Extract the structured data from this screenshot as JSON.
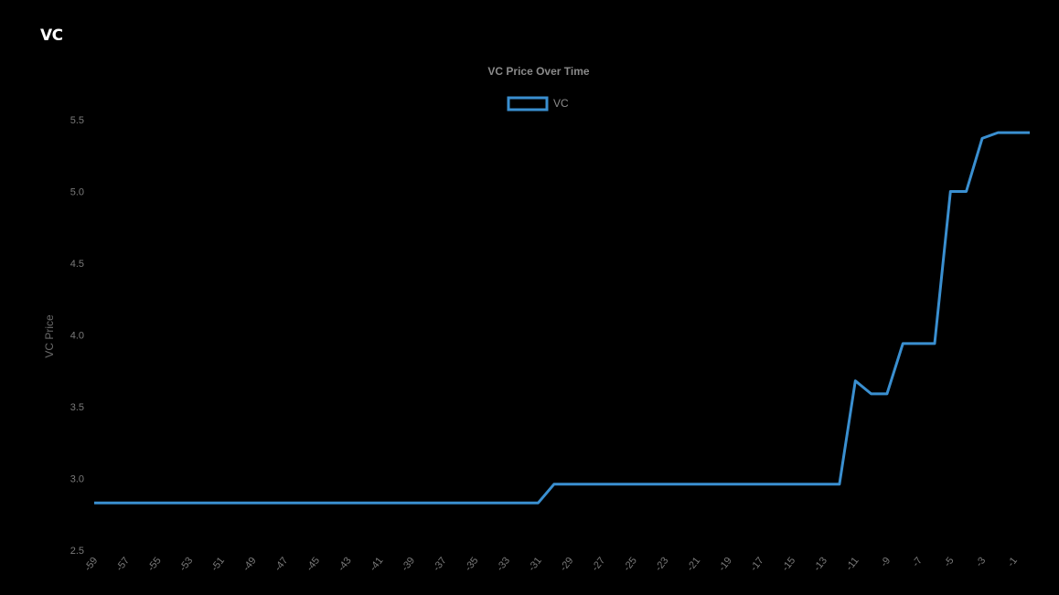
{
  "app": {
    "title": "VC"
  },
  "chart_data": {
    "type": "line",
    "title": "VC Price Over Time",
    "xlabel": "",
    "ylabel": "VC Price",
    "ylim": [
      2.5,
      5.5
    ],
    "yticks": [
      "2.5",
      "3.0",
      "3.5",
      "4.0",
      "4.5",
      "5.0",
      "5.5"
    ],
    "xlim": [
      -59,
      0
    ],
    "xticks": [
      "-59",
      "-57",
      "-55",
      "-53",
      "-51",
      "-49",
      "-47",
      "-45",
      "-43",
      "-41",
      "-39",
      "-37",
      "-35",
      "-33",
      "-31",
      "-29",
      "-27",
      "-25",
      "-23",
      "-21",
      "-19",
      "-17",
      "-15",
      "-13",
      "-11",
      "-9",
      "-7",
      "-5",
      "-3",
      "-1"
    ],
    "grid": false,
    "legend_position": "top",
    "series": [
      {
        "name": "VC",
        "color": "#3a8fd0",
        "x": [
          -59,
          -58,
          -57,
          -56,
          -55,
          -54,
          -53,
          -52,
          -51,
          -50,
          -49,
          -48,
          -47,
          -46,
          -45,
          -44,
          -43,
          -42,
          -41,
          -40,
          -39,
          -38,
          -37,
          -36,
          -35,
          -34,
          -33,
          -32,
          -31,
          -30,
          -29,
          -28,
          -27,
          -26,
          -25,
          -24,
          -23,
          -22,
          -21,
          -20,
          -19,
          -18,
          -17,
          -16,
          -15,
          -14,
          -13,
          -12,
          -11,
          -10,
          -9,
          -8,
          -7,
          -6,
          -5,
          -4,
          -3,
          -2,
          -1,
          0
        ],
        "values": [
          2.83,
          2.83,
          2.83,
          2.83,
          2.83,
          2.83,
          2.83,
          2.83,
          2.83,
          2.83,
          2.83,
          2.83,
          2.83,
          2.83,
          2.83,
          2.83,
          2.83,
          2.83,
          2.83,
          2.83,
          2.83,
          2.83,
          2.83,
          2.83,
          2.83,
          2.83,
          2.83,
          2.83,
          2.83,
          2.96,
          2.96,
          2.96,
          2.96,
          2.96,
          2.96,
          2.96,
          2.96,
          2.96,
          2.96,
          2.96,
          2.96,
          2.96,
          2.96,
          2.96,
          2.96,
          2.96,
          2.96,
          2.96,
          3.68,
          3.59,
          3.59,
          3.94,
          3.94,
          3.94,
          5.0,
          5.0,
          5.37,
          5.41,
          5.41,
          5.41
        ]
      }
    ]
  }
}
